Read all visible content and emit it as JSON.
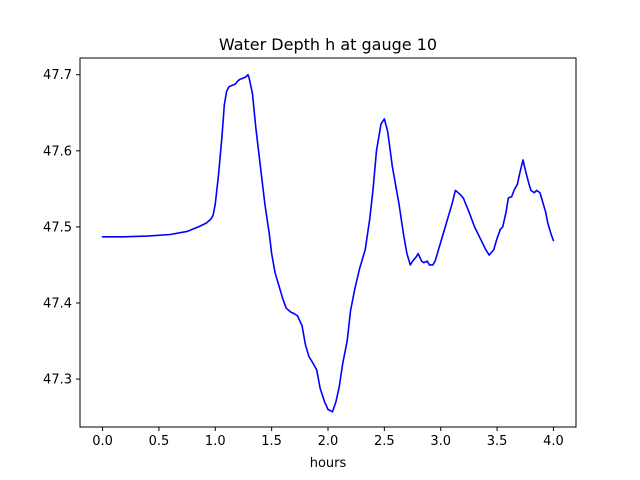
{
  "chart_data": {
    "type": "line",
    "title": "Water Depth h at gauge 10",
    "xlabel": "hours",
    "ylabel": "",
    "xlim": [
      -0.2,
      4.2
    ],
    "ylim": [
      47.237,
      47.722
    ],
    "xticks": [
      0.0,
      0.5,
      1.0,
      1.5,
      2.0,
      2.5,
      3.0,
      3.5,
      4.0
    ],
    "xtick_labels": [
      "0.0",
      "0.5",
      "1.0",
      "1.5",
      "2.0",
      "2.5",
      "3.0",
      "3.5",
      "4.0"
    ],
    "yticks": [
      47.3,
      47.4,
      47.5,
      47.6,
      47.7
    ],
    "ytick_labels": [
      "47.3",
      "47.4",
      "47.5",
      "47.6",
      "47.7"
    ],
    "grid": false,
    "legend": false,
    "series": [
      {
        "color": "#0000ff",
        "x": [
          0.0,
          0.2,
          0.4,
          0.6,
          0.75,
          0.85,
          0.92,
          0.96,
          0.98,
          1.0,
          1.03,
          1.06,
          1.08,
          1.1,
          1.12,
          1.15,
          1.18,
          1.2,
          1.22,
          1.24,
          1.27,
          1.29,
          1.3,
          1.33,
          1.36,
          1.4,
          1.44,
          1.48,
          1.5,
          1.53,
          1.57,
          1.6,
          1.63,
          1.67,
          1.7,
          1.73,
          1.77,
          1.8,
          1.83,
          1.87,
          1.9,
          1.93,
          1.97,
          2.0,
          2.04,
          2.07,
          2.1,
          2.13,
          2.17,
          2.2,
          2.24,
          2.28,
          2.3,
          2.33,
          2.37,
          2.4,
          2.43,
          2.47,
          2.5,
          2.53,
          2.57,
          2.6,
          2.63,
          2.67,
          2.7,
          2.73,
          2.75,
          2.78,
          2.8,
          2.83,
          2.85,
          2.88,
          2.9,
          2.93,
          2.95,
          3.0,
          3.05,
          3.1,
          3.13,
          3.17,
          3.2,
          3.25,
          3.3,
          3.35,
          3.4,
          3.43,
          3.47,
          3.5,
          3.53,
          3.55,
          3.58,
          3.6,
          3.63,
          3.65,
          3.68,
          3.7,
          3.73,
          3.75,
          3.78,
          3.8,
          3.83,
          3.85,
          3.88,
          3.9,
          3.93,
          3.95,
          3.98,
          4.0
        ],
        "y": [
          47.487,
          47.487,
          47.488,
          47.49,
          47.494,
          47.5,
          47.505,
          47.51,
          47.515,
          47.53,
          47.57,
          47.62,
          47.66,
          47.678,
          47.684,
          47.686,
          47.688,
          47.692,
          47.694,
          47.695,
          47.697,
          47.7,
          47.696,
          47.675,
          47.63,
          47.58,
          47.53,
          47.49,
          47.465,
          47.44,
          47.42,
          47.405,
          47.393,
          47.388,
          47.386,
          47.383,
          47.37,
          47.345,
          47.33,
          47.32,
          47.312,
          47.288,
          47.27,
          47.26,
          47.257,
          47.27,
          47.29,
          47.32,
          47.35,
          47.39,
          47.42,
          47.445,
          47.455,
          47.47,
          47.51,
          47.55,
          47.6,
          47.635,
          47.642,
          47.625,
          47.58,
          47.555,
          47.53,
          47.49,
          47.465,
          47.45,
          47.455,
          47.46,
          47.465,
          47.455,
          47.453,
          47.455,
          47.45,
          47.45,
          47.455,
          47.48,
          47.505,
          47.53,
          47.548,
          47.543,
          47.538,
          47.52,
          47.5,
          47.485,
          47.47,
          47.463,
          47.47,
          47.485,
          47.497,
          47.5,
          47.52,
          47.538,
          47.54,
          47.548,
          47.556,
          47.57,
          47.588,
          47.575,
          47.558,
          47.548,
          47.545,
          47.548,
          47.545,
          47.535,
          47.52,
          47.505,
          47.49,
          47.482
        ]
      }
    ]
  }
}
